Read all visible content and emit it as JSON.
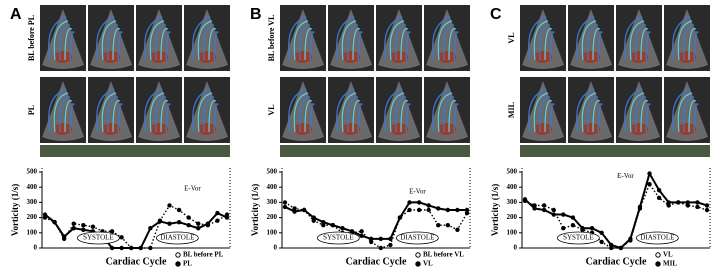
{
  "chart_data": [
    {
      "type": "line",
      "panel": "A",
      "image_row_labels": [
        "BL before PL",
        "PL"
      ],
      "y_label": "Vorticity (1/s)",
      "x_label": "Cardiac Cycle",
      "annotations": [
        "E-Vor",
        "SYSTOLE",
        "DIASTOLE"
      ],
      "categories": [
        null,
        null,
        null,
        null,
        null,
        null,
        null,
        null,
        null,
        null,
        null,
        null,
        null,
        null,
        null,
        null,
        null,
        null,
        null,
        null
      ],
      "ylim": [
        0,
        500
      ],
      "yticks": [
        0,
        100,
        200,
        300,
        400,
        500
      ],
      "series": [
        {
          "name": "BL before PL",
          "color": "#000000",
          "line_style": "dotted",
          "marker": "open",
          "values": [
            200,
            170,
            60,
            160,
            150,
            140,
            110,
            110,
            70,
            0,
            0,
            0,
            180,
            280,
            250,
            200,
            160,
            150,
            180,
            220
          ]
        },
        {
          "name": "PL",
          "color": "#000000",
          "line_style": "solid",
          "marker": "filled",
          "values": [
            220,
            170,
            75,
            130,
            120,
            110,
            80,
            0,
            0,
            0,
            0,
            130,
            175,
            160,
            170,
            150,
            130,
            160,
            230,
            200
          ]
        }
      ]
    },
    {
      "type": "line",
      "panel": "B",
      "image_row_labels": [
        "BL before VL",
        "VL"
      ],
      "y_label": "Vorticity (1/s)",
      "x_label": "Cardiac Cycle",
      "annotations": [
        "E-Vor",
        "SYSTOLE",
        "DIASTOLE"
      ],
      "categories": [
        null,
        null,
        null,
        null,
        null,
        null,
        null,
        null,
        null,
        null,
        null,
        null,
        null,
        null,
        null,
        null,
        null,
        null,
        null,
        null
      ],
      "ylim": [
        0,
        500
      ],
      "yticks": [
        0,
        100,
        200,
        300,
        400,
        500
      ],
      "series": [
        {
          "name": "BL before VL",
          "color": "#000000",
          "line_style": "dotted",
          "marker": "open",
          "values": [
            300,
            260,
            250,
            180,
            150,
            150,
            100,
            100,
            110,
            40,
            0,
            20,
            200,
            250,
            250,
            250,
            150,
            150,
            120,
            230
          ]
        },
        {
          "name": "VL",
          "color": "#000000",
          "line_style": "solid",
          "marker": "filled",
          "values": [
            270,
            240,
            250,
            200,
            170,
            150,
            130,
            110,
            80,
            60,
            60,
            60,
            200,
            300,
            300,
            280,
            260,
            250,
            250,
            250
          ]
        }
      ]
    },
    {
      "type": "line",
      "panel": "C",
      "image_row_labels": [
        "VL",
        "MIL"
      ],
      "y_label": "Vorticity (1/s)",
      "x_label": "Cardiac Cycle",
      "annotations": [
        "E-Vor",
        "SYSTOLE",
        "DIASTOLE"
      ],
      "categories": [
        null,
        null,
        null,
        null,
        null,
        null,
        null,
        null,
        null,
        null,
        null,
        null,
        null,
        null,
        null,
        null,
        null,
        null,
        null,
        null
      ],
      "ylim": [
        0,
        500
      ],
      "yticks": [
        0,
        100,
        200,
        300,
        400,
        500
      ],
      "series": [
        {
          "name": "VL",
          "color": "#000000",
          "line_style": "dotted",
          "marker": "open",
          "values": [
            310,
            280,
            280,
            250,
            130,
            150,
            120,
            100,
            40,
            0,
            0,
            50,
            260,
            420,
            330,
            280,
            300,
            280,
            270,
            250
          ]
        },
        {
          "name": "MIL",
          "color": "#000000",
          "line_style": "solid",
          "marker": "filled",
          "values": [
            320,
            260,
            250,
            220,
            220,
            200,
            130,
            130,
            100,
            20,
            0,
            60,
            270,
            490,
            380,
            300,
            300,
            300,
            300,
            280
          ]
        }
      ]
    }
  ]
}
